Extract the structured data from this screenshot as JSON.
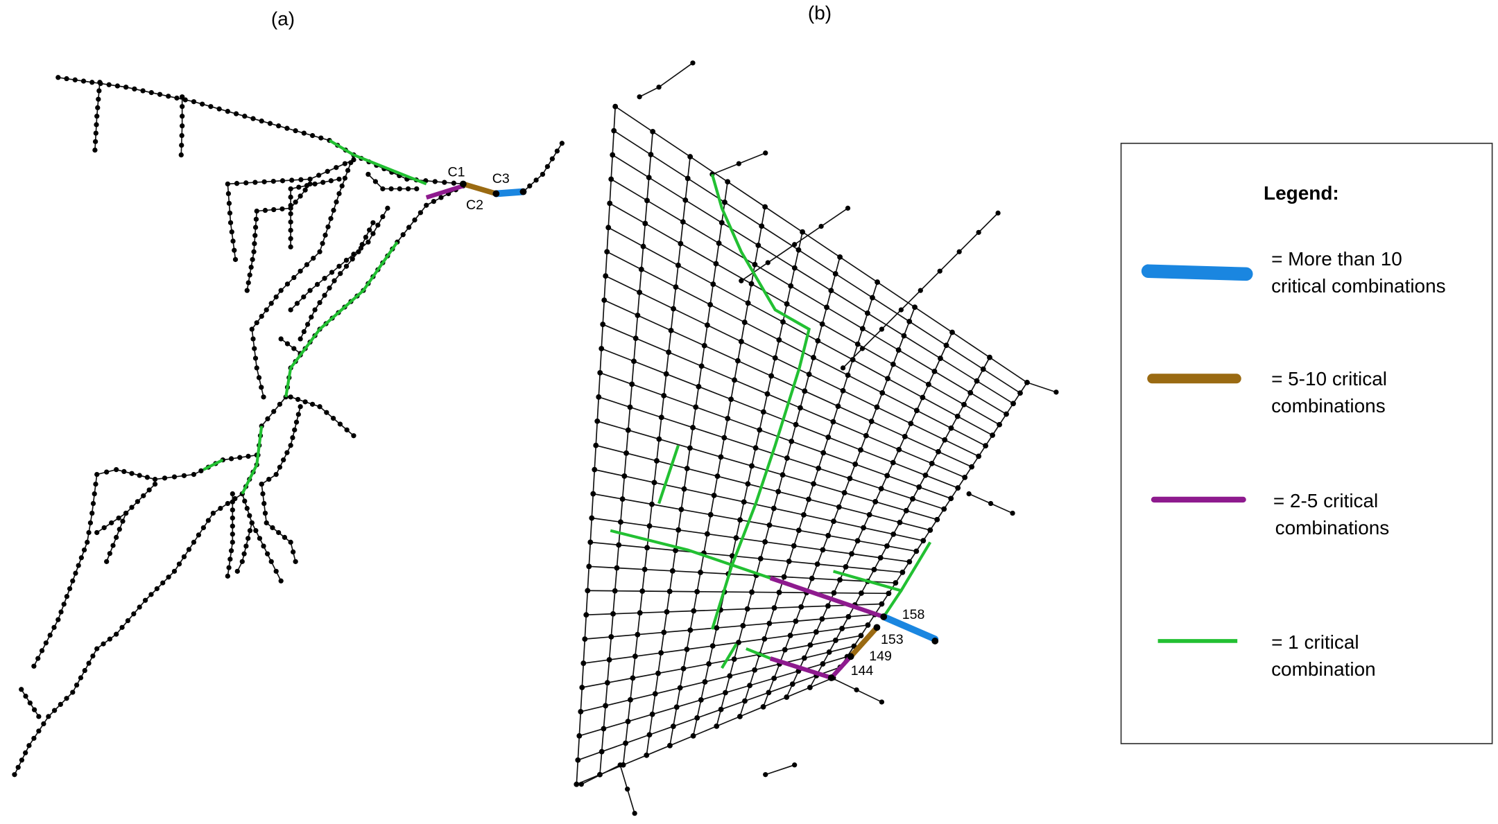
{
  "panels": [
    {
      "label": "(a)"
    },
    {
      "label": "(b)"
    }
  ],
  "annotations": {
    "a": [
      "C1",
      "C2",
      "C3"
    ],
    "b": [
      "158",
      "153",
      "149",
      "144"
    ]
  },
  "legend": {
    "title": "Legend:",
    "items": [
      {
        "lines": [
          "= More than 10",
          "critical combinations"
        ]
      },
      {
        "lines": [
          "= 5-10 critical",
          "combinations"
        ]
      },
      {
        "lines": [
          "= 2-5 critical",
          "combinations"
        ]
      },
      {
        "lines": [
          "= 1 critical",
          "combination"
        ]
      }
    ]
  }
}
